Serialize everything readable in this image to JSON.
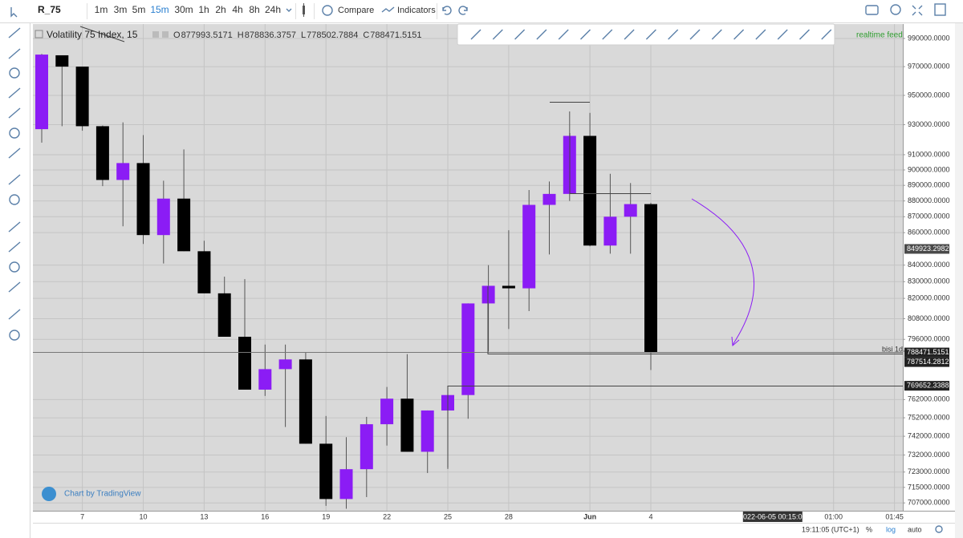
{
  "toolbar": {
    "symbol": "R_75",
    "intervals": [
      "1m",
      "3m",
      "5m",
      "15m",
      "30m",
      "1h",
      "2h",
      "4h",
      "8h",
      "24h"
    ],
    "compare": "Compare",
    "indicators": "Indicators"
  },
  "legend": {
    "title": "Volatility 75 Index, 15",
    "ohlc_labels": [
      "O",
      "H",
      "L",
      "C"
    ]
  },
  "watermark": "Chart by TradingView",
  "feed_note": "realtime feed",
  "annotation": "bisi 1d.",
  "chart_data": {
    "type": "candlestick",
    "log_scale": true,
    "grid": true,
    "up_color": "#8b1cf5",
    "down_color": "#000000",
    "categories": [
      null,
      null,
      "7",
      null,
      null,
      "10",
      null,
      null,
      "13",
      null,
      null,
      "16",
      null,
      null,
      "19",
      null,
      null,
      "22",
      null,
      null,
      "25",
      null,
      null,
      "28",
      null,
      null,
      null,
      "Jun",
      null,
      null,
      "4",
      null,
      null,
      null,
      null,
      null,
      "2022-06-05 00:15:00",
      null,
      null,
      "01:00",
      null,
      null,
      "01:45"
    ],
    "open": [
      927000,
      978000,
      970000,
      929000,
      893500,
      904500,
      858500,
      881500,
      848500,
      823000,
      797500,
      767500,
      779000,
      784500,
      738000,
      709000,
      724500,
      748500,
      762500,
      733700,
      756000,
      764500,
      817000,
      827500,
      826000,
      877500,
      884500,
      922500,
      852000,
      870000,
      877993.5171,
      null,
      null,
      null,
      null,
      null,
      null,
      null,
      null,
      null,
      null,
      null,
      null
    ],
    "high": [
      979000,
      978000,
      970000,
      929500,
      931600,
      923000,
      893000,
      913500,
      855000,
      833000,
      831500,
      793000,
      793000,
      788500,
      753000,
      741500,
      752500,
      769000,
      787500,
      756000,
      769000,
      817000,
      840000,
      861500,
      887000,
      892500,
      939000,
      938000,
      897500,
      891500,
      878836.3757,
      null,
      null,
      null,
      null,
      null,
      null,
      null,
      null,
      null,
      null,
      null,
      null
    ],
    "low": [
      918000,
      929000,
      926000,
      889500,
      864000,
      853000,
      841000,
      848500,
      823000,
      797500,
      767500,
      764000,
      747000,
      738000,
      705500,
      704000,
      710000,
      737000,
      733700,
      722500,
      724600,
      751500,
      789000,
      802000,
      812500,
      846500,
      880000,
      851500,
      847000,
      847000,
      778502.7884,
      null,
      null,
      null,
      null,
      null,
      null,
      null,
      null,
      null,
      null,
      null,
      null
    ],
    "close": [
      978500,
      970000,
      929000,
      893500,
      904500,
      858500,
      881500,
      848500,
      823000,
      797500,
      767500,
      779000,
      784500,
      738000,
      709000,
      724500,
      748500,
      762500,
      733700,
      756000,
      764500,
      817000,
      827500,
      826000,
      877500,
      884500,
      922500,
      852000,
      870000,
      878000,
      788471.5151,
      null,
      null,
      null,
      null,
      null,
      null,
      null,
      null,
      null,
      null,
      null,
      null
    ],
    "ylim": [
      703000,
      1000400
    ],
    "yticks": [
      {
        "value": 990000,
        "label": "990000.0000"
      },
      {
        "value": 970000,
        "label": "970000.0000"
      },
      {
        "value": 950000,
        "label": "950000.0000"
      },
      {
        "value": 930000,
        "label": "930000.0000"
      },
      {
        "value": 910000,
        "label": "910000.0000"
      },
      {
        "value": 900000,
        "label": "900000.0000"
      },
      {
        "value": 890000,
        "label": "890000.0000"
      },
      {
        "value": 880000,
        "label": "880000.0000"
      },
      {
        "value": 870000,
        "label": "870000.0000"
      },
      {
        "value": 860000,
        "label": "860000.0000"
      },
      {
        "value": 840000,
        "label": "840000.0000"
      },
      {
        "value": 830000,
        "label": "830000.0000"
      },
      {
        "value": 820000,
        "label": "820000.0000"
      },
      {
        "value": 808000,
        "label": "808000.0000"
      },
      {
        "value": 796000,
        "label": "796000.0000"
      },
      {
        "value": 762000,
        "label": "762000.0000"
      },
      {
        "value": 752000,
        "label": "752000.0000"
      },
      {
        "value": 742000,
        "label": "742000.0000"
      },
      {
        "value": 732000,
        "label": "732000.0000"
      },
      {
        "value": 723000,
        "label": "723000.0000"
      },
      {
        "value": 715000,
        "label": "715000.0000"
      },
      {
        "value": 707000,
        "label": "707000.0000"
      }
    ],
    "price_tags": [
      849923.2982,
      788471.5151,
      787514.2812,
      769652.3388
    ]
  },
  "status_bar": {
    "time": "19:11:05 (UTC+1)",
    "percent": "%",
    "log": "log",
    "auto": "auto"
  }
}
